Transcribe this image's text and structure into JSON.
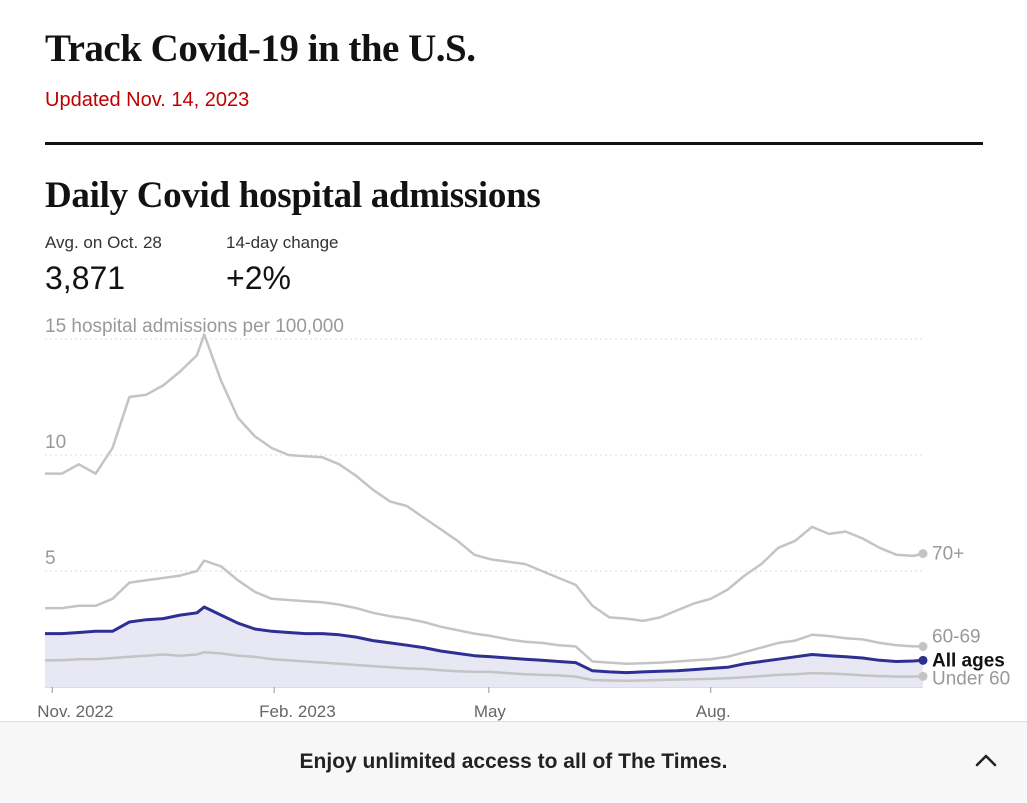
{
  "page": {
    "title": "Track Covid-19 in the U.S.",
    "updated": "Updated Nov. 14, 2023"
  },
  "stats": {
    "avg_label": "Avg. on Oct. 28",
    "avg_value": "3,871",
    "change_label": "14-day change",
    "change_value": "+2%"
  },
  "banner": {
    "text": "Enjoy unlimited access to all of The Times.",
    "icon": "chevron-up-icon"
  },
  "colors": {
    "all_ages": "#2e2f93",
    "other_series": "#c4c4c4",
    "area_fill": "#e8e8f4",
    "updated_text": "#c00000"
  },
  "chart_data": {
    "type": "line",
    "title": "Daily Covid hospital admissions",
    "ylabel": "hospital admissions per 100,000",
    "ylim": [
      0,
      15
    ],
    "yticks": [
      {
        "value": 15,
        "label": "15 hospital admissions per 100,000"
      },
      {
        "value": 10,
        "label": "10"
      },
      {
        "value": 5,
        "label": "5"
      }
    ],
    "xlim": [
      "2022-10-29",
      "2023-10-28"
    ],
    "xticks": [
      {
        "date": "2022-11-01",
        "label": "Nov. 2022"
      },
      {
        "date": "2023-02-01",
        "label": "Feb. 2023"
      },
      {
        "date": "2023-05-01",
        "label": "May"
      },
      {
        "date": "2023-08-01",
        "label": "Aug."
      }
    ],
    "grid": true,
    "legend": "direct labels at line ends",
    "series": [
      {
        "name": "70+",
        "points": [
          [
            "2022-10-29",
            9.2
          ],
          [
            "2022-11-05",
            9.2
          ],
          [
            "2022-11-12",
            9.6
          ],
          [
            "2022-11-19",
            9.2
          ],
          [
            "2022-11-26",
            10.3
          ],
          [
            "2022-12-03",
            12.5
          ],
          [
            "2022-12-10",
            12.6
          ],
          [
            "2022-12-17",
            13.0
          ],
          [
            "2022-12-24",
            13.6
          ],
          [
            "2022-12-31",
            14.3
          ],
          [
            "2023-01-03",
            15.2
          ],
          [
            "2023-01-10",
            13.2
          ],
          [
            "2023-01-17",
            11.6
          ],
          [
            "2023-01-24",
            10.8
          ],
          [
            "2023-01-31",
            10.3
          ],
          [
            "2023-02-07",
            10.0
          ],
          [
            "2023-02-14",
            9.95
          ],
          [
            "2023-02-21",
            9.9
          ],
          [
            "2023-02-28",
            9.6
          ],
          [
            "2023-03-07",
            9.1
          ],
          [
            "2023-03-14",
            8.5
          ],
          [
            "2023-03-21",
            8.0
          ],
          [
            "2023-03-28",
            7.8
          ],
          [
            "2023-04-04",
            7.3
          ],
          [
            "2023-04-11",
            6.8
          ],
          [
            "2023-04-18",
            6.3
          ],
          [
            "2023-04-25",
            5.7
          ],
          [
            "2023-05-02",
            5.5
          ],
          [
            "2023-05-09",
            5.4
          ],
          [
            "2023-05-16",
            5.3
          ],
          [
            "2023-05-23",
            5.0
          ],
          [
            "2023-05-30",
            4.7
          ],
          [
            "2023-06-06",
            4.4
          ],
          [
            "2023-06-13",
            3.5
          ],
          [
            "2023-06-20",
            3.0
          ],
          [
            "2023-06-27",
            2.95
          ],
          [
            "2023-07-04",
            2.85
          ],
          [
            "2023-07-11",
            3.0
          ],
          [
            "2023-07-18",
            3.3
          ],
          [
            "2023-07-25",
            3.6
          ],
          [
            "2023-08-01",
            3.8
          ],
          [
            "2023-08-08",
            4.2
          ],
          [
            "2023-08-15",
            4.8
          ],
          [
            "2023-08-22",
            5.3
          ],
          [
            "2023-08-29",
            6.0
          ],
          [
            "2023-09-05",
            6.3
          ],
          [
            "2023-09-12",
            6.9
          ],
          [
            "2023-09-19",
            6.6
          ],
          [
            "2023-09-26",
            6.7
          ],
          [
            "2023-10-03",
            6.4
          ],
          [
            "2023-10-10",
            6.0
          ],
          [
            "2023-10-17",
            5.7
          ],
          [
            "2023-10-24",
            5.65
          ],
          [
            "2023-10-28",
            5.75
          ]
        ]
      },
      {
        "name": "60-69",
        "points": [
          [
            "2022-10-29",
            3.4
          ],
          [
            "2022-11-05",
            3.4
          ],
          [
            "2022-11-12",
            3.5
          ],
          [
            "2022-11-19",
            3.5
          ],
          [
            "2022-11-26",
            3.8
          ],
          [
            "2022-12-03",
            4.5
          ],
          [
            "2022-12-10",
            4.6
          ],
          [
            "2022-12-17",
            4.7
          ],
          [
            "2022-12-24",
            4.8
          ],
          [
            "2022-12-31",
            5.0
          ],
          [
            "2023-01-03",
            5.45
          ],
          [
            "2023-01-10",
            5.2
          ],
          [
            "2023-01-17",
            4.6
          ],
          [
            "2023-01-24",
            4.1
          ],
          [
            "2023-01-31",
            3.8
          ],
          [
            "2023-02-07",
            3.75
          ],
          [
            "2023-02-14",
            3.7
          ],
          [
            "2023-02-21",
            3.65
          ],
          [
            "2023-02-28",
            3.55
          ],
          [
            "2023-03-07",
            3.4
          ],
          [
            "2023-03-14",
            3.2
          ],
          [
            "2023-03-21",
            3.05
          ],
          [
            "2023-03-28",
            2.95
          ],
          [
            "2023-04-04",
            2.8
          ],
          [
            "2023-04-11",
            2.6
          ],
          [
            "2023-04-18",
            2.45
          ],
          [
            "2023-04-25",
            2.3
          ],
          [
            "2023-05-02",
            2.2
          ],
          [
            "2023-05-09",
            2.05
          ],
          [
            "2023-05-16",
            1.95
          ],
          [
            "2023-05-23",
            1.9
          ],
          [
            "2023-05-30",
            1.8
          ],
          [
            "2023-06-06",
            1.75
          ],
          [
            "2023-06-13",
            1.1
          ],
          [
            "2023-06-20",
            1.05
          ],
          [
            "2023-06-27",
            1.0
          ],
          [
            "2023-07-04",
            1.02
          ],
          [
            "2023-07-11",
            1.05
          ],
          [
            "2023-07-18",
            1.1
          ],
          [
            "2023-07-25",
            1.15
          ],
          [
            "2023-08-01",
            1.2
          ],
          [
            "2023-08-08",
            1.3
          ],
          [
            "2023-08-15",
            1.5
          ],
          [
            "2023-08-22",
            1.7
          ],
          [
            "2023-08-29",
            1.9
          ],
          [
            "2023-09-05",
            2.0
          ],
          [
            "2023-09-12",
            2.25
          ],
          [
            "2023-09-19",
            2.2
          ],
          [
            "2023-09-26",
            2.1
          ],
          [
            "2023-10-03",
            2.05
          ],
          [
            "2023-10-10",
            1.9
          ],
          [
            "2023-10-17",
            1.8
          ],
          [
            "2023-10-24",
            1.75
          ],
          [
            "2023-10-28",
            1.75
          ]
        ]
      },
      {
        "name": "All ages",
        "points": [
          [
            "2022-10-29",
            2.3
          ],
          [
            "2022-11-05",
            2.3
          ],
          [
            "2022-11-12",
            2.35
          ],
          [
            "2022-11-19",
            2.4
          ],
          [
            "2022-11-26",
            2.4
          ],
          [
            "2022-12-03",
            2.8
          ],
          [
            "2022-12-10",
            2.9
          ],
          [
            "2022-12-17",
            2.95
          ],
          [
            "2022-12-24",
            3.1
          ],
          [
            "2022-12-31",
            3.2
          ],
          [
            "2023-01-03",
            3.45
          ],
          [
            "2023-01-10",
            3.1
          ],
          [
            "2023-01-17",
            2.75
          ],
          [
            "2023-01-24",
            2.5
          ],
          [
            "2023-01-31",
            2.4
          ],
          [
            "2023-02-07",
            2.35
          ],
          [
            "2023-02-14",
            2.3
          ],
          [
            "2023-02-21",
            2.3
          ],
          [
            "2023-02-28",
            2.25
          ],
          [
            "2023-03-07",
            2.15
          ],
          [
            "2023-03-14",
            2.0
          ],
          [
            "2023-03-21",
            1.9
          ],
          [
            "2023-03-28",
            1.8
          ],
          [
            "2023-04-04",
            1.7
          ],
          [
            "2023-04-11",
            1.55
          ],
          [
            "2023-04-18",
            1.45
          ],
          [
            "2023-04-25",
            1.35
          ],
          [
            "2023-05-02",
            1.3
          ],
          [
            "2023-05-09",
            1.25
          ],
          [
            "2023-05-16",
            1.2
          ],
          [
            "2023-05-23",
            1.15
          ],
          [
            "2023-05-30",
            1.1
          ],
          [
            "2023-06-06",
            1.05
          ],
          [
            "2023-06-13",
            0.7
          ],
          [
            "2023-06-20",
            0.65
          ],
          [
            "2023-06-27",
            0.62
          ],
          [
            "2023-07-04",
            0.65
          ],
          [
            "2023-07-11",
            0.68
          ],
          [
            "2023-07-18",
            0.7
          ],
          [
            "2023-07-25",
            0.75
          ],
          [
            "2023-08-01",
            0.8
          ],
          [
            "2023-08-08",
            0.85
          ],
          [
            "2023-08-15",
            1.0
          ],
          [
            "2023-08-22",
            1.1
          ],
          [
            "2023-08-29",
            1.2
          ],
          [
            "2023-09-05",
            1.3
          ],
          [
            "2023-09-12",
            1.4
          ],
          [
            "2023-09-19",
            1.35
          ],
          [
            "2023-09-26",
            1.3
          ],
          [
            "2023-10-03",
            1.25
          ],
          [
            "2023-10-10",
            1.15
          ],
          [
            "2023-10-17",
            1.1
          ],
          [
            "2023-10-24",
            1.12
          ],
          [
            "2023-10-28",
            1.15
          ]
        ]
      },
      {
        "name": "Under 60",
        "points": [
          [
            "2022-10-29",
            1.15
          ],
          [
            "2022-11-05",
            1.15
          ],
          [
            "2022-11-12",
            1.2
          ],
          [
            "2022-11-19",
            1.2
          ],
          [
            "2022-11-26",
            1.25
          ],
          [
            "2022-12-03",
            1.3
          ],
          [
            "2022-12-10",
            1.35
          ],
          [
            "2022-12-17",
            1.4
          ],
          [
            "2022-12-24",
            1.35
          ],
          [
            "2022-12-31",
            1.4
          ],
          [
            "2023-01-03",
            1.5
          ],
          [
            "2023-01-10",
            1.45
          ],
          [
            "2023-01-17",
            1.35
          ],
          [
            "2023-01-24",
            1.3
          ],
          [
            "2023-01-31",
            1.2
          ],
          [
            "2023-02-07",
            1.15
          ],
          [
            "2023-02-14",
            1.1
          ],
          [
            "2023-02-21",
            1.05
          ],
          [
            "2023-02-28",
            1.0
          ],
          [
            "2023-03-07",
            0.95
          ],
          [
            "2023-03-14",
            0.9
          ],
          [
            "2023-03-21",
            0.85
          ],
          [
            "2023-03-28",
            0.8
          ],
          [
            "2023-04-04",
            0.78
          ],
          [
            "2023-04-11",
            0.72
          ],
          [
            "2023-04-18",
            0.68
          ],
          [
            "2023-04-25",
            0.65
          ],
          [
            "2023-05-02",
            0.65
          ],
          [
            "2023-05-09",
            0.6
          ],
          [
            "2023-05-16",
            0.55
          ],
          [
            "2023-05-23",
            0.52
          ],
          [
            "2023-05-30",
            0.5
          ],
          [
            "2023-06-06",
            0.45
          ],
          [
            "2023-06-13",
            0.3
          ],
          [
            "2023-06-20",
            0.28
          ],
          [
            "2023-06-27",
            0.27
          ],
          [
            "2023-07-04",
            0.28
          ],
          [
            "2023-07-11",
            0.3
          ],
          [
            "2023-07-18",
            0.32
          ],
          [
            "2023-07-25",
            0.33
          ],
          [
            "2023-08-01",
            0.35
          ],
          [
            "2023-08-08",
            0.38
          ],
          [
            "2023-08-15",
            0.42
          ],
          [
            "2023-08-22",
            0.47
          ],
          [
            "2023-08-29",
            0.52
          ],
          [
            "2023-09-05",
            0.55
          ],
          [
            "2023-09-12",
            0.6
          ],
          [
            "2023-09-19",
            0.58
          ],
          [
            "2023-09-26",
            0.55
          ],
          [
            "2023-10-03",
            0.5
          ],
          [
            "2023-10-10",
            0.47
          ],
          [
            "2023-10-17",
            0.45
          ],
          [
            "2023-10-24",
            0.45
          ],
          [
            "2023-10-28",
            0.46
          ]
        ]
      }
    ]
  }
}
